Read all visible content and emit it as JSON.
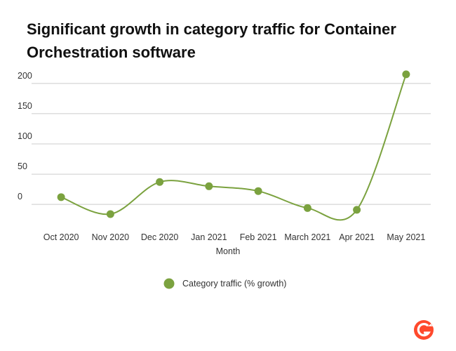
{
  "chart_data": {
    "type": "line",
    "title": [
      "Significant growth in category traffic for Container",
      "Orchestration software"
    ],
    "x_label": "Month",
    "categories": [
      "Oct 2020",
      "Nov 2020",
      "Dec 2020",
      "Jan 2021",
      "Feb 2021",
      "March 2021",
      "Apr 2021",
      "May 2021"
    ],
    "series": [
      {
        "name": "Category traffic (% growth)",
        "color": "#7ba23f",
        "values": [
          12,
          -16,
          37,
          30,
          22,
          -6,
          -9,
          215
        ]
      }
    ],
    "ylim": [
      -30,
      230
    ],
    "yticks": [
      0,
      50,
      100,
      150,
      200
    ],
    "grid": true,
    "legend": "bottom",
    "smooth": true
  }
}
